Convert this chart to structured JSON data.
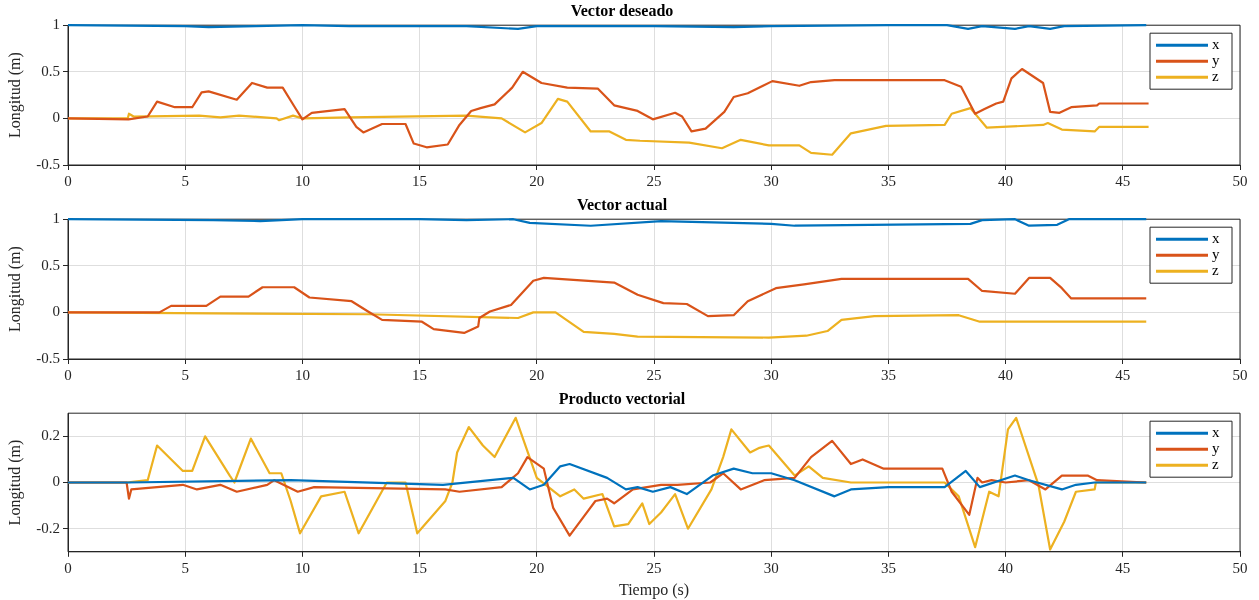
{
  "chart_data": [
    {
      "type": "line",
      "title": "Vector deseado",
      "ylabel": "Longitud (m)",
      "xlim": [
        0,
        50
      ],
      "xticks": [
        0,
        5,
        10,
        15,
        20,
        25,
        30,
        35,
        40,
        45,
        50
      ],
      "ylim": [
        -0.5,
        1
      ],
      "yticks": [
        -0.5,
        0,
        0.5,
        1
      ],
      "grid": true,
      "legend": "top right",
      "series": [
        {
          "name": "x",
          "color": "#0072bd",
          "x": [
            0,
            5,
            6,
            8,
            10,
            12,
            15,
            17,
            19.2,
            20,
            22,
            25,
            28.4,
            30,
            35,
            37.5,
            38.4,
            39,
            40.4,
            41,
            41.9,
            42.5,
            46
          ],
          "values": [
            1,
            0.99,
            0.98,
            0.99,
            1,
            0.99,
            0.99,
            0.99,
            0.96,
            0.99,
            0.99,
            0.99,
            0.98,
            0.99,
            1,
            1,
            0.96,
            0.99,
            0.96,
            0.99,
            0.96,
            0.99,
            1
          ]
        },
        {
          "name": "y",
          "color": "#d95319",
          "x": [
            0,
            2.58,
            3.4,
            3.8,
            4.56,
            5.3,
            5.7,
            6.0,
            7.2,
            7.85,
            8.5,
            9.16,
            9.65,
            10.0,
            10.4,
            11.8,
            12.3,
            12.6,
            13.4,
            14.4,
            14.75,
            15.3,
            16.2,
            16.7,
            17.2,
            17.6,
            18.2,
            18.95,
            19.4,
            20.2,
            21.3,
            22.6,
            23.3,
            24.3,
            24.95,
            25.9,
            26.2,
            26.6,
            27.2,
            28.0,
            28.4,
            29.0,
            30.05,
            31.2,
            31.7,
            32.7,
            37.4,
            38.1,
            38.7,
            39.1,
            39.6,
            39.9,
            40.25,
            40.7,
            41.6,
            41.9,
            42.3,
            42.8,
            43.9,
            44,
            46.1
          ],
          "values": [
            0,
            -0.01,
            0.02,
            0.18,
            0.12,
            0.12,
            0.28,
            0.29,
            0.2,
            0.38,
            0.33,
            0.33,
            0.13,
            -0.01,
            0.06,
            0.1,
            -0.09,
            -0.15,
            -0.06,
            -0.06,
            -0.27,
            -0.31,
            -0.28,
            -0.07,
            0.08,
            0.11,
            0.15,
            0.33,
            0.5,
            0.38,
            0.33,
            0.32,
            0.14,
            0.08,
            -0.01,
            0.06,
            0.02,
            -0.14,
            -0.11,
            0.07,
            0.23,
            0.27,
            0.4,
            0.35,
            0.39,
            0.41,
            0.41,
            0.34,
            0.05,
            0.1,
            0.16,
            0.18,
            0.43,
            0.53,
            0.38,
            0.07,
            0.06,
            0.12,
            0.14,
            0.16,
            0.16
          ]
        },
        {
          "name": "z",
          "color": "#edb120",
          "x": [
            0,
            2.55,
            2.6,
            2.8,
            5.6,
            6.5,
            7.3,
            8.9,
            9.0,
            9.6,
            10,
            12,
            17,
            18.5,
            19.5,
            20.2,
            20.9,
            21.3,
            22.3,
            23.1,
            23.8,
            24.4,
            26.5,
            27.9,
            28.7,
            29.9,
            31.2,
            31.7,
            32.6,
            33.4,
            34.9,
            37.4,
            37.7,
            38.5,
            39.2,
            41.6,
            41.8,
            42.4,
            43.8,
            44,
            46.1
          ],
          "values": [
            0,
            0,
            0.05,
            0.02,
            0.03,
            0.01,
            0.03,
            0,
            -0.02,
            0.03,
            0,
            0.01,
            0.03,
            0,
            -0.15,
            -0.05,
            0.21,
            0.18,
            -0.14,
            -0.14,
            -0.23,
            -0.24,
            -0.26,
            -0.32,
            -0.23,
            -0.29,
            -0.29,
            -0.37,
            -0.39,
            -0.16,
            -0.08,
            -0.07,
            0.05,
            0.11,
            -0.1,
            -0.07,
            -0.05,
            -0.12,
            -0.14,
            -0.09,
            -0.09
          ]
        }
      ]
    },
    {
      "type": "line",
      "title": "Vector actual",
      "ylabel": "Longitud (m)",
      "xlim": [
        0,
        50
      ],
      "xticks": [
        0,
        5,
        10,
        15,
        20,
        25,
        30,
        35,
        40,
        45,
        50
      ],
      "ylim": [
        -0.5,
        1
      ],
      "yticks": [
        -0.5,
        0,
        0.5,
        1
      ],
      "grid": true,
      "legend": "top right",
      "series": [
        {
          "name": "x",
          "color": "#0072bd",
          "x": [
            0,
            6.2,
            8.2,
            10,
            15,
            17,
            19,
            19.7,
            22.3,
            25.3,
            30,
            31,
            38.5,
            39,
            40.4,
            41,
            42.2,
            42.7,
            46
          ],
          "values": [
            1,
            0.99,
            0.98,
            1,
            1,
            0.99,
            1,
            0.96,
            0.93,
            0.98,
            0.95,
            0.93,
            0.95,
            0.99,
            1,
            0.93,
            0.94,
            1,
            1
          ]
        },
        {
          "name": "y",
          "color": "#d95319",
          "x": [
            0,
            3.9,
            4.4,
            5.9,
            6.5,
            7.7,
            8.3,
            9.65,
            10.3,
            12.1,
            12.8,
            13.4,
            15.1,
            15.6,
            16.9,
            17.5,
            17.55,
            18.0,
            18.9,
            19.85,
            20.3,
            23.3,
            24.3,
            25.4,
            26.4,
            27.3,
            28.4,
            29.0,
            30.2,
            31.4,
            33.0,
            38.4,
            39,
            40.4,
            41.0,
            41.9,
            42.4,
            42.8,
            46.0
          ],
          "values": [
            0,
            0,
            0.07,
            0.07,
            0.17,
            0.17,
            0.27,
            0.27,
            0.16,
            0.12,
            0.01,
            -0.08,
            -0.1,
            -0.18,
            -0.22,
            -0.15,
            -0.06,
            0.01,
            0.08,
            0.34,
            0.37,
            0.32,
            0.19,
            0.1,
            0.09,
            -0.04,
            -0.03,
            0.12,
            0.26,
            0.3,
            0.36,
            0.36,
            0.23,
            0.2,
            0.37,
            0.37,
            0.26,
            0.15,
            0.15
          ]
        },
        {
          "name": "z",
          "color": "#edb120",
          "x": [
            0,
            6.2,
            12.8,
            19.2,
            19.85,
            20.8,
            22.0,
            23.3,
            24.3,
            29.9,
            31.5,
            32.4,
            33,
            34.4,
            38.0,
            38.9,
            46
          ],
          "values": [
            0,
            -0.01,
            -0.02,
            -0.06,
            0,
            0,
            -0.21,
            -0.23,
            -0.26,
            -0.27,
            -0.25,
            -0.2,
            -0.08,
            -0.04,
            -0.03,
            -0.1,
            -0.1
          ]
        }
      ]
    },
    {
      "type": "line",
      "title": "Producto vectorial",
      "xlabel": "Tiempo (s)",
      "ylabel": "Longitud (m)",
      "xlim": [
        0,
        50
      ],
      "xticks": [
        0,
        5,
        10,
        15,
        20,
        25,
        30,
        35,
        40,
        45,
        50
      ],
      "ylim": [
        -0.3,
        0.3
      ],
      "yticks": [
        -0.2,
        0,
        0.2
      ],
      "grid": true,
      "legend": "top right",
      "series": [
        {
          "name": "x",
          "color": "#0072bd",
          "x": [
            0,
            2.5,
            9.5,
            16,
            19,
            19.7,
            20.3,
            21.0,
            21.4,
            23,
            23.8,
            24.3,
            24.95,
            25.7,
            26.4,
            27.5,
            28.4,
            29.2,
            30.0,
            31.0,
            32.7,
            33.4,
            35.0,
            37.4,
            38.3,
            38.9,
            40.4,
            41,
            42.4,
            43,
            43.8,
            46
          ],
          "values": [
            0,
            0,
            0.01,
            -0.01,
            0.02,
            -0.03,
            -0.01,
            0.07,
            0.08,
            0.02,
            -0.03,
            -0.02,
            -0.04,
            -0.02,
            -0.05,
            0.03,
            0.06,
            0.04,
            0.04,
            0.01,
            -0.06,
            -0.03,
            -0.02,
            -0.02,
            0.05,
            -0.02,
            0.03,
            0.01,
            -0.03,
            -0.01,
            0,
            0
          ]
        },
        {
          "name": "y",
          "color": "#d95319",
          "x": [
            0,
            2.5,
            2.6,
            2.7,
            4.9,
            5.5,
            6.5,
            7.2,
            8.5,
            8.8,
            9.8,
            10.5,
            16.1,
            16.7,
            18.5,
            19.2,
            19.6,
            20.3,
            20.7,
            21.4,
            22.5,
            23.0,
            23.3,
            24.1,
            25.3,
            26,
            27.4,
            27.95,
            28.7,
            29.7,
            31.0,
            31.7,
            32.6,
            33.4,
            33.9,
            34.8,
            37.3,
            37.7,
            38.45,
            38.8,
            39.0,
            39.4,
            40,
            41,
            41.7,
            42.4,
            43.5,
            43.9,
            46
          ],
          "values": [
            0,
            0,
            -0.07,
            -0.03,
            -0.01,
            -0.03,
            -0.01,
            -0.04,
            -0.01,
            0.01,
            -0.04,
            -0.02,
            -0.03,
            -0.04,
            -0.02,
            0.04,
            0.11,
            0.06,
            -0.11,
            -0.23,
            -0.08,
            -0.07,
            -0.09,
            -0.03,
            -0.01,
            -0.01,
            0,
            0.04,
            -0.03,
            0.01,
            0.02,
            0.11,
            0.18,
            0.08,
            0.1,
            0.06,
            0.06,
            -0.04,
            -0.14,
            0.02,
            0,
            0.01,
            0,
            0.01,
            -0.03,
            0.03,
            0.03,
            0.01,
            0
          ]
        },
        {
          "name": "z",
          "color": "#edb120",
          "x": [
            0,
            2.5,
            3.4,
            3.8,
            4.9,
            5.3,
            5.85,
            6.9,
            7.1,
            7.8,
            8.6,
            9.1,
            9.5,
            9.9,
            10.8,
            11.8,
            12.4,
            13.6,
            14.4,
            14.9,
            16.1,
            16.4,
            16.6,
            17.1,
            17.7,
            18.2,
            19.1,
            20.0,
            21.0,
            21.6,
            22.0,
            22.8,
            23.3,
            23.9,
            24.5,
            24.8,
            25.3,
            25.9,
            26.45,
            27.45,
            27.95,
            28.3,
            29.1,
            29.5,
            29.9,
            31.0,
            31.6,
            32.2,
            33.4,
            37.4,
            38.0,
            38.7,
            39.3,
            39.7,
            40.1,
            40.45,
            41.4,
            41.9,
            42.5,
            43.0,
            43.8,
            43.85,
            46
          ],
          "values": [
            0,
            0,
            0.01,
            0.16,
            0.05,
            0.05,
            0.2,
            0.03,
            0,
            0.19,
            0.04,
            0.04,
            -0.08,
            -0.22,
            -0.06,
            -0.04,
            -0.22,
            0,
            0,
            -0.22,
            -0.08,
            0,
            0.13,
            0.24,
            0.16,
            0.11,
            0.28,
            0.02,
            -0.06,
            -0.03,
            -0.07,
            -0.05,
            -0.19,
            -0.18,
            -0.09,
            -0.18,
            -0.13,
            -0.05,
            -0.2,
            -0.03,
            0.11,
            0.23,
            0.13,
            0.15,
            0.16,
            0.03,
            0.07,
            0.02,
            0,
            0,
            -0.06,
            -0.28,
            -0.04,
            -0.06,
            0.23,
            0.28,
            -0.01,
            -0.29,
            -0.17,
            -0.04,
            -0.03,
            0,
            0
          ]
        }
      ]
    }
  ]
}
